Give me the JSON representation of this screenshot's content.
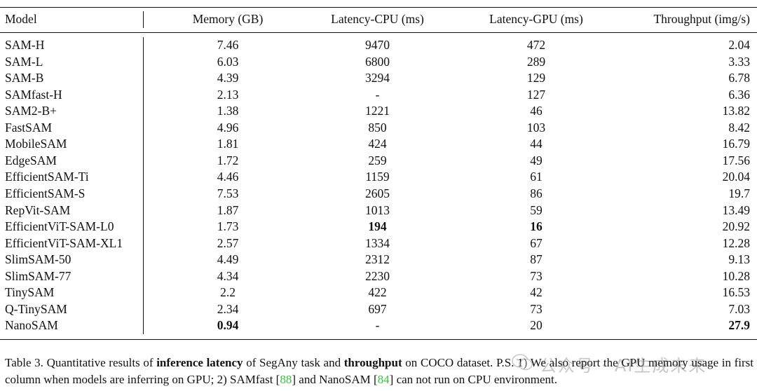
{
  "table": {
    "headers": [
      "Model",
      "Memory (GB)",
      "Latency-CPU (ms)",
      "Latency-GPU (ms)",
      "Throughput (img/s)"
    ],
    "rows": [
      {
        "model": "SAM-H",
        "memory": "7.46",
        "cpu": "9470",
        "gpu": "472",
        "throughput": "2.04"
      },
      {
        "model": "SAM-L",
        "memory": "6.03",
        "cpu": "6800",
        "gpu": "289",
        "throughput": "3.33"
      },
      {
        "model": "SAM-B",
        "memory": "4.39",
        "cpu": "3294",
        "gpu": "129",
        "throughput": "6.78"
      },
      {
        "model": "SAMfast-H",
        "memory": "2.13",
        "cpu": "-",
        "gpu": "127",
        "throughput": "6.36"
      },
      {
        "model": "SAM2-B+",
        "memory": "1.38",
        "cpu": "1221",
        "gpu": "46",
        "throughput": "13.82"
      },
      {
        "model": "FastSAM",
        "memory": "4.96",
        "cpu": "850",
        "gpu": "103",
        "throughput": "8.42"
      },
      {
        "model": "MobileSAM",
        "memory": "1.81",
        "cpu": "424",
        "gpu": "44",
        "throughput": "16.79"
      },
      {
        "model": "EdgeSAM",
        "memory": "1.72",
        "cpu": "259",
        "gpu": "49",
        "throughput": "17.56"
      },
      {
        "model": "EfficientSAM-Ti",
        "memory": "4.46",
        "cpu": "1159",
        "gpu": "61",
        "throughput": "20.04"
      },
      {
        "model": "EfficientSAM-S",
        "memory": "7.53",
        "cpu": "2605",
        "gpu": "86",
        "throughput": "19.7"
      },
      {
        "model": "RepVit-SAM",
        "memory": "1.87",
        "cpu": "1013",
        "gpu": "59",
        "throughput": "13.49"
      },
      {
        "model": "EfficientViT-SAM-L0",
        "memory": "1.73",
        "cpu": "194",
        "gpu": "16",
        "throughput": "20.92"
      },
      {
        "model": "EfficientViT-SAM-XL1",
        "memory": "2.57",
        "cpu": "1334",
        "gpu": "67",
        "throughput": "12.28"
      },
      {
        "model": "SlimSAM-50",
        "memory": "4.49",
        "cpu": "2312",
        "gpu": "87",
        "throughput": "9.13"
      },
      {
        "model": "SlimSAM-77",
        "memory": "4.34",
        "cpu": "2230",
        "gpu": "73",
        "throughput": "10.28"
      },
      {
        "model": "TinySAM",
        "memory": "2.2",
        "cpu": "422",
        "gpu": "42",
        "throughput": "16.53"
      },
      {
        "model": "Q-TinySAM",
        "memory": "2.34",
        "cpu": "697",
        "gpu": "73",
        "throughput": "7.03"
      },
      {
        "model": "NanoSAM",
        "memory": "0.94",
        "cpu": "-",
        "gpu": "20",
        "throughput": "27.9"
      }
    ],
    "bold_cells": [
      {
        "row": 11,
        "key": "cpu"
      },
      {
        "row": 11,
        "key": "gpu"
      },
      {
        "row": 17,
        "key": "memory"
      },
      {
        "row": 17,
        "key": "throughput"
      }
    ]
  },
  "caption": {
    "label": "Table 3.",
    "t1": " Quantitative results of ",
    "b1": "inference latency",
    "t2": " of SegAny task and ",
    "b2": "throughput",
    "t3": " on COCO dataset. P.S. 1) We also report the GPU memory usage in first column when models are inferring on GPU; 2) SAMfast [",
    "ref1": "88",
    "t4": "] and NanoSAM [",
    "ref2": "84",
    "t5": "] can not run on CPU environment."
  },
  "watermark": {
    "text": "公众号 · AI生成未来",
    "logo_icon": "wechat-icon"
  }
}
